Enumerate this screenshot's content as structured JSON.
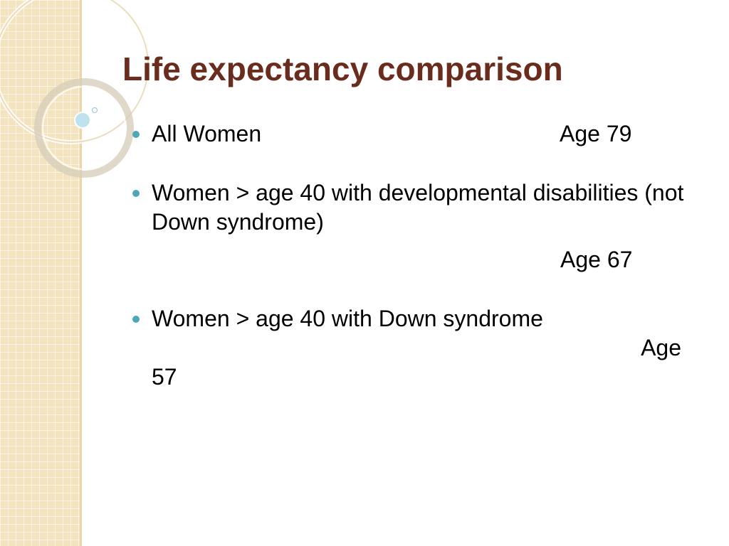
{
  "slide": {
    "title": "Life expectancy comparison",
    "bullets": [
      {
        "label": "All Women",
        "age": "Age 79"
      },
      {
        "label": "Women > age 40 with developmental disabilities (not Down syndrome)",
        "age": "Age 67"
      },
      {
        "label": "Women > age 40 with Down syndrome",
        "age_word": "Age",
        "age_number": "57"
      }
    ]
  },
  "colors": {
    "title": "#6a2c1d",
    "bullet": "#4ea6b9",
    "sidebar": "#f3e4bf"
  }
}
